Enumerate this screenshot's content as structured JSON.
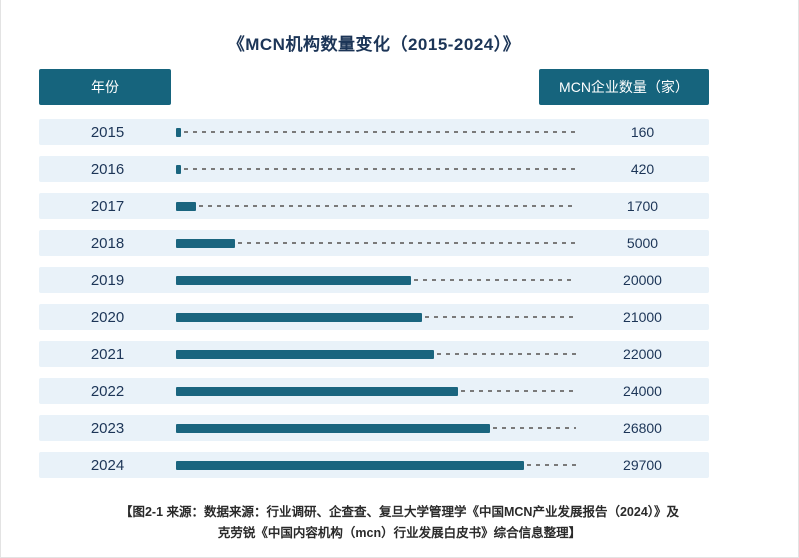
{
  "title": "《MCN机构数量变化（2015-2024）》",
  "header": {
    "year_label": "年份",
    "value_label": "MCN企业数量（家）"
  },
  "footer": {
    "line1": "【图2-1 来源：数据来源：行业调研、企查查、复旦大学管理学《中国MCN产业发展报告（2024）》及",
    "line2": "克劳锐《中国内容机构（mcn）行业发展白皮书》综合信息整理】"
  },
  "colors": {
    "accent": "#16647d",
    "row_bg": "#e9f2f9",
    "bar": "#1a657f",
    "text": "#1c3557",
    "dash": "#7a7a7a"
  },
  "chart_data": {
    "type": "bar",
    "orientation": "horizontal",
    "title": "《MCN机构数量变化（2015-2024）》",
    "xlabel": "MCN企业数量（家）",
    "ylabel": "年份",
    "categories": [
      "2015",
      "2016",
      "2017",
      "2018",
      "2019",
      "2020",
      "2021",
      "2022",
      "2023",
      "2024"
    ],
    "values": [
      160,
      420,
      1700,
      5000,
      20000,
      21000,
      22000,
      24000,
      26800,
      29700
    ],
    "xlim": [
      0,
      30000
    ],
    "grid": false,
    "legend": "none",
    "bar_color": "#1a657f",
    "data_labels": "right-of-dashed-leader"
  }
}
